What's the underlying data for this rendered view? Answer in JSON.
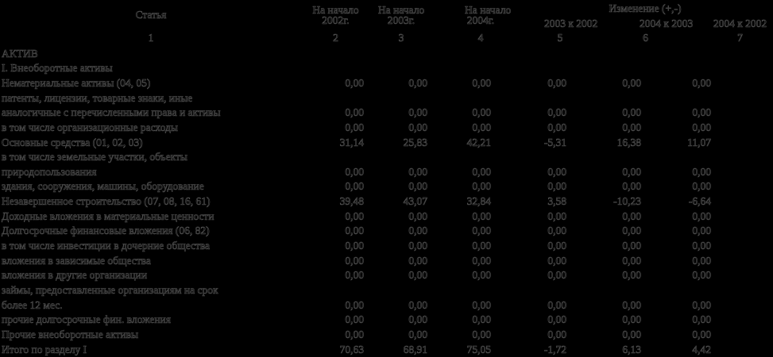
{
  "table": {
    "header": {
      "article": "Статья",
      "period_columns": [
        {
          "line1": "На начало",
          "line2": "2002г."
        },
        {
          "line1": "На начало",
          "line2": "2003г."
        },
        {
          "line1": "На начало",
          "line2": "2004г."
        }
      ],
      "change_group_label": "Изменение (+,-)",
      "change_columns": [
        "2003 к 2002",
        "2004 к 2003",
        "2004 к 2002"
      ],
      "numbering": [
        "1",
        "2",
        "3",
        "4",
        "5",
        "6",
        "7"
      ]
    },
    "rows": [
      {
        "label": "АКТИВ",
        "values": [
          "",
          "",
          "",
          "",
          "",
          ""
        ]
      },
      {
        "label": "I. Внеоборотные активы",
        "values": [
          "",
          "",
          "",
          "",
          "",
          ""
        ]
      },
      {
        "label": "Нематериальные активы (04, 05)",
        "values": [
          "0,00",
          "0,00",
          "0,00",
          "0,00",
          "0,00",
          "0,00"
        ]
      },
      {
        "label": "патенты, лицензии, товарные знаки, иные",
        "values": [
          "",
          "",
          "",
          "",
          "",
          ""
        ]
      },
      {
        "label": "аналогичные с перечисленными права и активы",
        "values": [
          "0,00",
          "0,00",
          "0,00",
          "0,00",
          "0,00",
          "0,00"
        ]
      },
      {
        "label": "в том числе организационные расходы",
        "values": [
          "0,00",
          "0,00",
          "0,00",
          "0,00",
          "0,00",
          "0,00"
        ]
      },
      {
        "label": "Основные средства (01, 02, 03)",
        "values": [
          "31,14",
          "25,83",
          "42,21",
          "-5,31",
          "16,38",
          "11,07"
        ]
      },
      {
        "label": "в том числе земельные участки, объекты",
        "values": [
          "",
          "",
          "",
          "",
          "",
          ""
        ]
      },
      {
        "label": "природопользования",
        "values": [
          "0,00",
          "0,00",
          "0,00",
          "0,00",
          "0,00",
          "0,00"
        ]
      },
      {
        "label": "здания, сооружения, машины, оборудование",
        "values": [
          "0,00",
          "0,00",
          "0,00",
          "0,00",
          "0,00",
          "0,00"
        ]
      },
      {
        "label": "Незавершенное строительство (07, 08, 16, 61)",
        "values": [
          "39,48",
          "43,07",
          "32,84",
          "3,58",
          "-10,23",
          "-6,64"
        ]
      },
      {
        "label": "Доходные вложения в материальные ценности",
        "values": [
          "0,00",
          "0,00",
          "0,00",
          "0,00",
          "0,00",
          "0,00"
        ]
      },
      {
        "label": "Долгосрочные финансовые вложения (06, 82)",
        "values": [
          "0,00",
          "0,00",
          "0,00",
          "0,00",
          "0,00",
          "0,00"
        ]
      },
      {
        "label": "в том числе инвестиции в дочерние общества",
        "values": [
          "0,00",
          "0,00",
          "0,00",
          "0,00",
          "0,00",
          "0,00"
        ]
      },
      {
        "label": "вложения в зависимые общества",
        "values": [
          "0,00",
          "0,00",
          "0,00",
          "0,00",
          "0,00",
          "0,00"
        ]
      },
      {
        "label": "вложения в другие организации",
        "values": [
          "0,00",
          "0,00",
          "0,00",
          "0,00",
          "0,00",
          "0,00"
        ]
      },
      {
        "label": "займы, предоставленные организациям на срок",
        "values": [
          "",
          "",
          "",
          "",
          "",
          ""
        ]
      },
      {
        "label": "более 12 мес.",
        "values": [
          "0,00",
          "0,00",
          "0,00",
          "0,00",
          "0,00",
          "0,00"
        ]
      },
      {
        "label": "прочие долгосрочные фин. вложения",
        "values": [
          "0,00",
          "0,00",
          "0,00",
          "0,00",
          "0,00",
          "0,00"
        ]
      },
      {
        "label": "Прочие внеоборотные активы",
        "values": [
          "0,00",
          "0,00",
          "0,00",
          "0,00",
          "0,00",
          "0,00"
        ]
      },
      {
        "label": "Итого по разделу I",
        "values": [
          "70,63",
          "68,91",
          "75,05",
          "-1,72",
          "6,13",
          "4,42"
        ]
      }
    ]
  },
  "colors": {
    "background": "#000000",
    "text_core": "#000000",
    "text_halo": "#4f4f4f"
  }
}
